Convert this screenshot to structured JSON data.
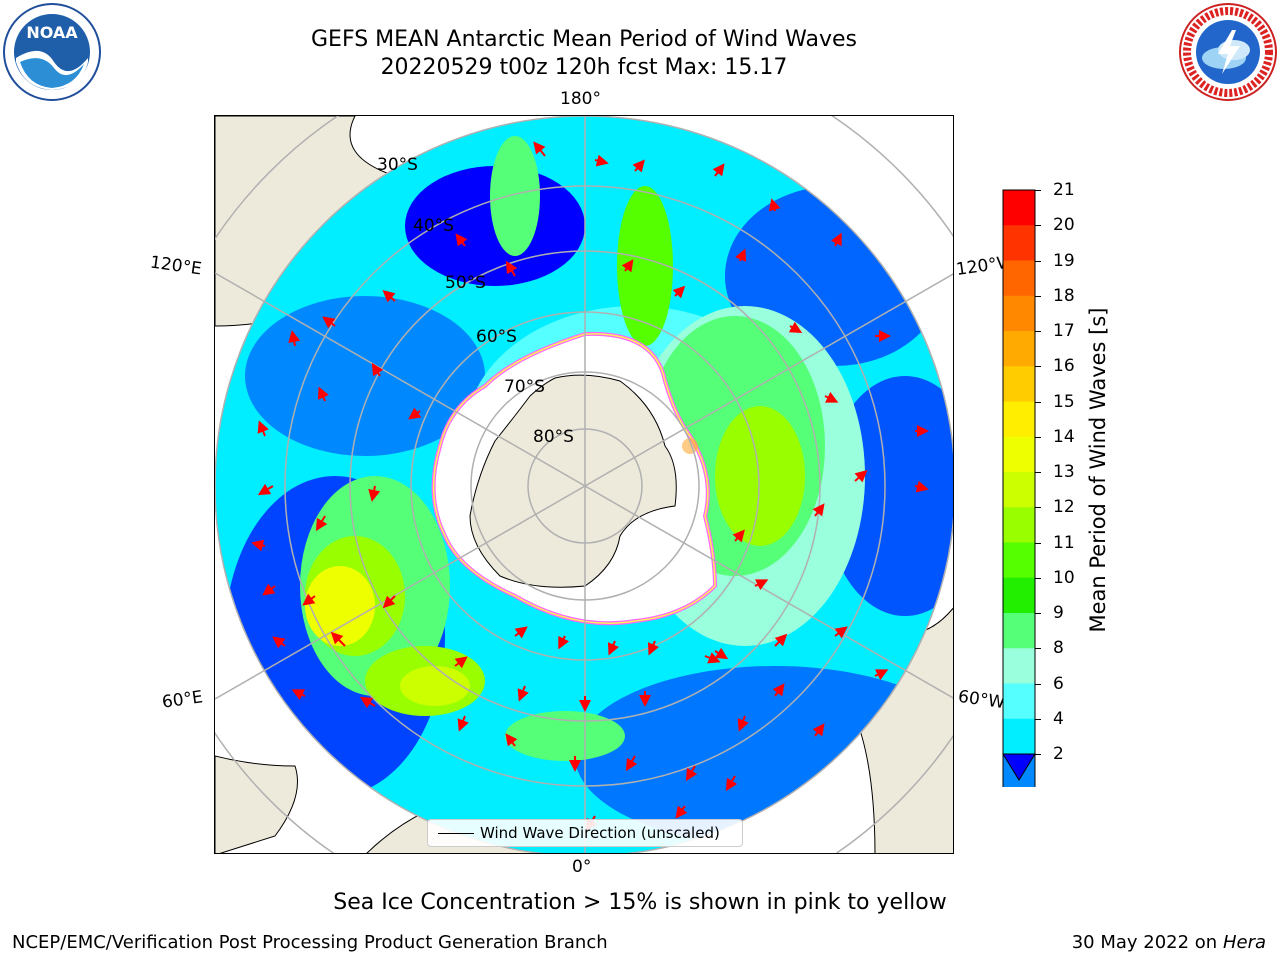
{
  "title": {
    "line1": "GEFS MEAN Antarctic Mean Period of Wind Waves",
    "line2": "20220529 t00z 120h fcst   Max: 15.17"
  },
  "logos": {
    "left": {
      "icon": "noaa-logo",
      "text": "NOAA",
      "ring_text": "NATIONAL OCEANIC AND ATMOSPHERIC ADMINISTRATION · U.S. DEPARTMENT OF COMMERCE"
    },
    "right": {
      "icon": "nws-logo",
      "ring_text": "NATIONAL WEATHER SERVICE"
    }
  },
  "map": {
    "projection": "south-polar-stereographic",
    "longitude_labels": {
      "top": "180°",
      "bottom": "0°",
      "upper_left": "120°E",
      "lower_left": "60°E",
      "upper_right": "120°W",
      "lower_right": "60°W"
    },
    "latitude_labels": [
      "30°S",
      "40°S",
      "50°S",
      "60°S",
      "70°S",
      "80°S"
    ],
    "legend_text": "Wind Wave Direction (unscaled)",
    "arrow_color": "#ff0000",
    "land_color": "#eeeadb",
    "ice_edge_colors": [
      "#ff66ff",
      "#ffaa33",
      "#ffee55"
    ]
  },
  "colorbar": {
    "label": "Mean Period of Wind Waves [s]",
    "ticks": [
      "21",
      "20",
      "19",
      "18",
      "17",
      "16",
      "15",
      "14",
      "13",
      "12",
      "11",
      "10",
      "9",
      "8",
      "6",
      "4",
      "2"
    ],
    "colors_top_to_bottom": [
      "#ff0000",
      "#ff3300",
      "#ff6600",
      "#ff8800",
      "#ffaa00",
      "#ffcc00",
      "#ffee00",
      "#eeff00",
      "#ccff00",
      "#99ff00",
      "#55ff00",
      "#22ee00",
      "#55ff77",
      "#99ffdd",
      "#55ffff",
      "#00eeff",
      "#0088ff"
    ],
    "under_color": "#0000ff"
  },
  "sub_caption": "Sea Ice Concentration > 15% is shown in pink to yellow",
  "footer": {
    "left": "NCEP/EMC/Verification Post Processing Product Generation Branch",
    "right_date": "30 May 2022 on",
    "right_machine": "Hera"
  }
}
